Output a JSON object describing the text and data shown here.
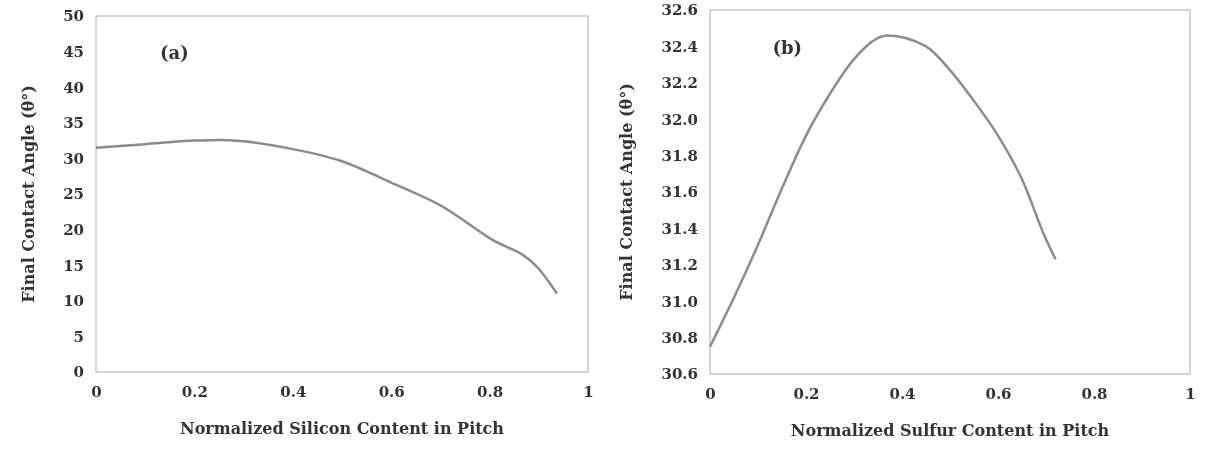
{
  "chart_data": [
    {
      "type": "line",
      "xlabel": "Normalized Silicon Content in Pitch",
      "ylabel": "Final Contact Angle (θ°)",
      "annotations": [
        "(a)"
      ],
      "series": [
        {
          "color": "#8c8c8c",
          "x": [
            0,
            0.1,
            0.2,
            0.25,
            0.3,
            0.4,
            0.5,
            0.6,
            0.7,
            0.8,
            0.9,
            0.937
          ],
          "values": [
            31.5,
            32,
            32.5,
            32.6,
            32.4,
            31.3,
            29.6,
            26.6,
            23.4,
            18.8,
            14.5,
            11
          ]
        }
      ],
      "xlim": [
        0,
        1
      ],
      "xticks": [
        0,
        0.2,
        0.4,
        0.6,
        0.8,
        1
      ],
      "ylim": [
        0,
        50
      ],
      "yticks": [
        0,
        5,
        10,
        15,
        20,
        25,
        30,
        35,
        40,
        45,
        50
      ],
      "grid": false,
      "marker": "none",
      "line_style": "solid"
    },
    {
      "type": "line",
      "xlabel": "Normalized Sulfur Content in Pitch",
      "ylabel": "Final Contact Angle (θ°)",
      "annotations": [
        "(b)"
      ],
      "series": [
        {
          "color": "#8c8c8c",
          "x": [
            0,
            0.05,
            0.1,
            0.15,
            0.2,
            0.25,
            0.3,
            0.37,
            0.45,
            0.5,
            0.55,
            0.6,
            0.65,
            0.7,
            0.72
          ],
          "values": [
            30.75,
            31.02,
            31.31,
            31.62,
            31.91,
            32.14,
            32.33,
            32.46,
            32.4,
            32.27,
            32.1,
            31.91,
            31.67,
            31.34,
            31.23
          ]
        }
      ],
      "xlim": [
        0,
        1
      ],
      "xticks": [
        0,
        0.2,
        0.4,
        0.6,
        0.8,
        1
      ],
      "ylim": [
        30.6,
        32.6
      ],
      "yticks": [
        {
          "value": 30.6,
          "label": "30.6"
        },
        {
          "value": 30.8,
          "label": "30.8"
        },
        {
          "value": 31,
          "label": "31.0"
        },
        {
          "value": 31.2,
          "label": "31.2"
        },
        {
          "value": 31.4,
          "label": "31.4"
        },
        {
          "value": 31.6,
          "label": "31.6"
        },
        {
          "value": 31.8,
          "label": "31.8"
        },
        {
          "value": 32,
          "label": "32.0"
        },
        {
          "value": 32.2,
          "label": "32.2"
        },
        {
          "value": 32.4,
          "label": "32.4"
        },
        {
          "value": 32.6,
          "label": "32.6"
        }
      ],
      "grid": false,
      "marker": "none",
      "line_style": "solid"
    }
  ]
}
